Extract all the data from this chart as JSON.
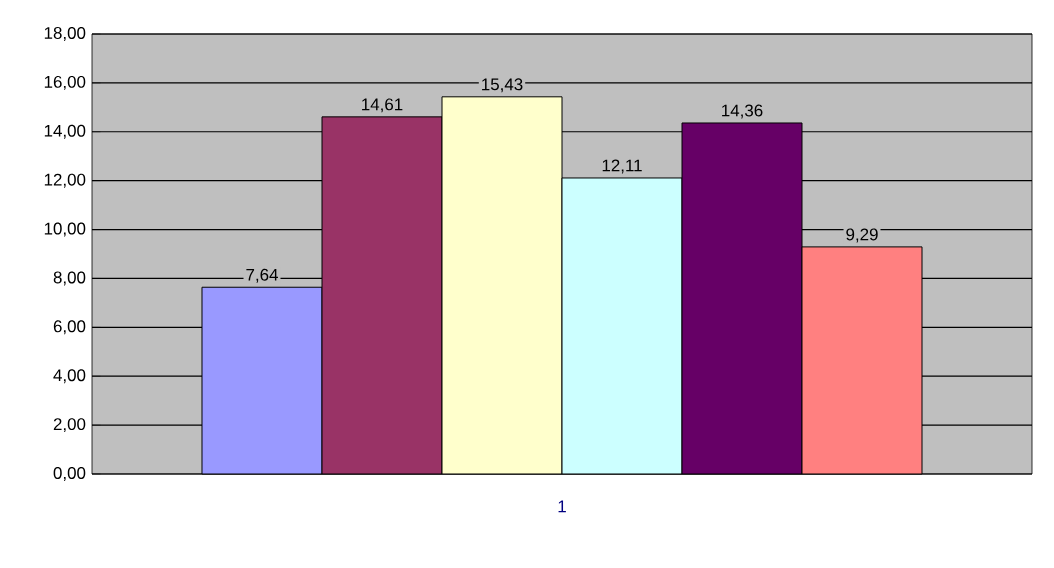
{
  "chart_data": {
    "type": "bar",
    "categories": [
      "1"
    ],
    "series": [
      {
        "color": "#9999ff",
        "values": [
          7.64
        ],
        "value_labels": [
          "7,64"
        ]
      },
      {
        "color": "#993366",
        "values": [
          14.61
        ],
        "value_labels": [
          "14,61"
        ]
      },
      {
        "color": "#ffffcc",
        "values": [
          15.43
        ],
        "value_labels": [
          "15,43"
        ]
      },
      {
        "color": "#ccffff",
        "values": [
          12.11
        ],
        "value_labels": [
          "12,11"
        ]
      },
      {
        "color": "#660066",
        "values": [
          14.36
        ],
        "value_labels": [
          "14,36"
        ]
      },
      {
        "color": "#ff8080",
        "values": [
          9.29
        ],
        "value_labels": [
          "9,29"
        ]
      }
    ],
    "ylim": [
      0,
      18
    ],
    "yticks": [
      {
        "value": 0,
        "label": "0,00"
      },
      {
        "value": 2,
        "label": "2,00"
      },
      {
        "value": 4,
        "label": "4,00"
      },
      {
        "value": 6,
        "label": "6,00"
      },
      {
        "value": 8,
        "label": "8,00"
      },
      {
        "value": 10,
        "label": "10,00"
      },
      {
        "value": 12,
        "label": "12,00"
      },
      {
        "value": 14,
        "label": "14,00"
      },
      {
        "value": 16,
        "label": "16,00"
      },
      {
        "value": 18,
        "label": "18,00"
      }
    ],
    "grid": "y"
  }
}
